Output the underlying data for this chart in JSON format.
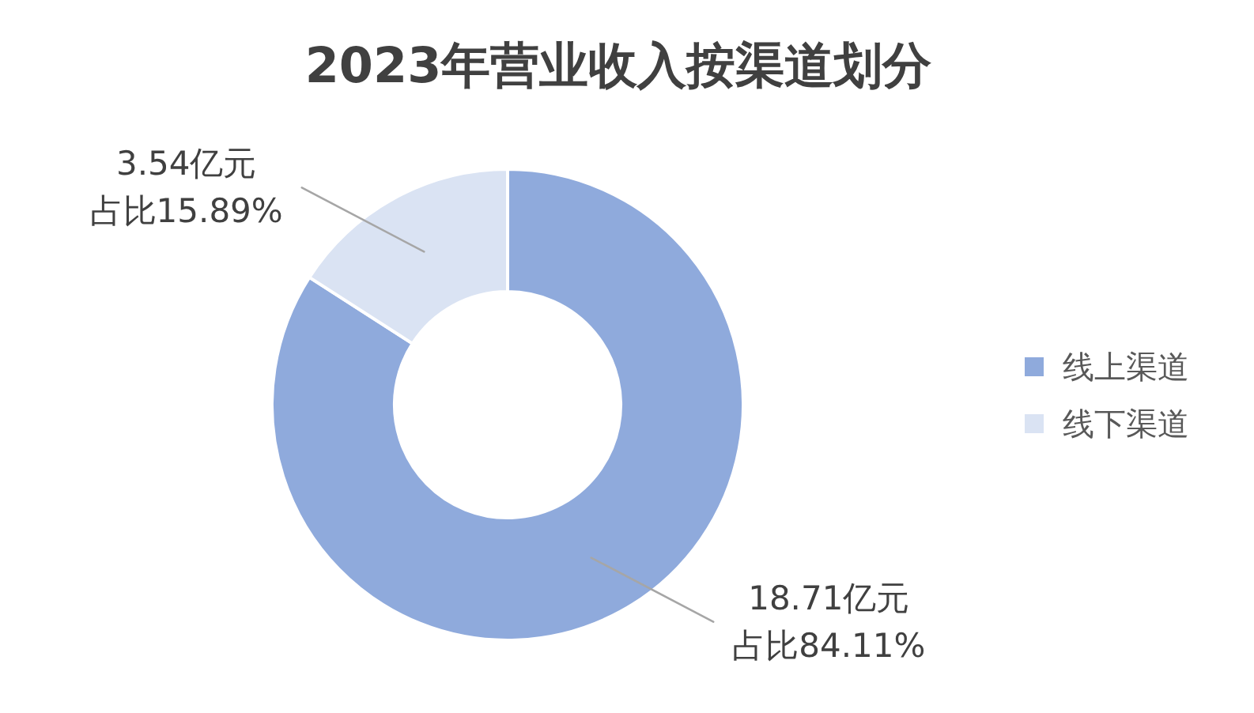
{
  "chart_data": {
    "type": "donut",
    "title": "2023年营业收入按渠道划分",
    "categories": [
      "线上渠道",
      "线下渠道"
    ],
    "values": [
      18.71,
      3.54
    ],
    "colors": [
      "#8faadc",
      "#dae3f3"
    ],
    "value_labels": [
      "18.71亿元占比84.11%",
      "3.54亿元占比15.89%"
    ],
    "legend": "right"
  }
}
